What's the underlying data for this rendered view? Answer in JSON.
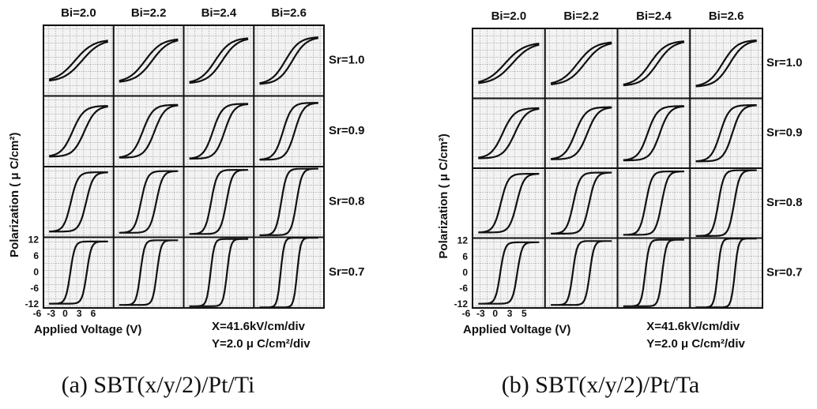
{
  "panels": [
    {
      "columns": [
        "Bi=2.0",
        "Bi=2.2",
        "Bi=2.4",
        "Bi=2.6"
      ],
      "rows": [
        "Sr=1.0",
        "Sr=0.9",
        "Sr=0.8",
        "Sr=0.7"
      ],
      "y_label": "Polarization ( μ C/cm²)",
      "y_ticks": [
        "12",
        "6",
        "0",
        "-6",
        "-12"
      ],
      "x_ticks": [
        "-6",
        "-3",
        "0",
        "3",
        "6"
      ],
      "x_label": "Applied Voltage (V)",
      "scale_x": "X=41.6kV/cm/div",
      "scale_y": "Y=2.0 μ C/cm²/div",
      "caption": "(a) SBT(x/y/2)/Pt/Ti"
    },
    {
      "columns": [
        "Bi=2.0",
        "Bi=2.2",
        "Bi=2.4",
        "Bi=2.6"
      ],
      "rows": [
        "Sr=1.0",
        "Sr=0.9",
        "Sr=0.8",
        "Sr=0.7"
      ],
      "y_label": "Polarization ( μ C/cm²)",
      "y_ticks": [
        "12",
        "6",
        "0",
        "-6",
        "-12"
      ],
      "x_ticks": [
        "-6",
        "-3",
        "0",
        "3",
        "5"
      ],
      "x_label": "Applied Voltage (V)",
      "scale_x": "X=41.6kV/cm/div",
      "scale_y": "Y=2.0 μ C/cm²/div",
      "caption": "(b) SBT(x/y/2)/Pt/Ta"
    }
  ]
}
